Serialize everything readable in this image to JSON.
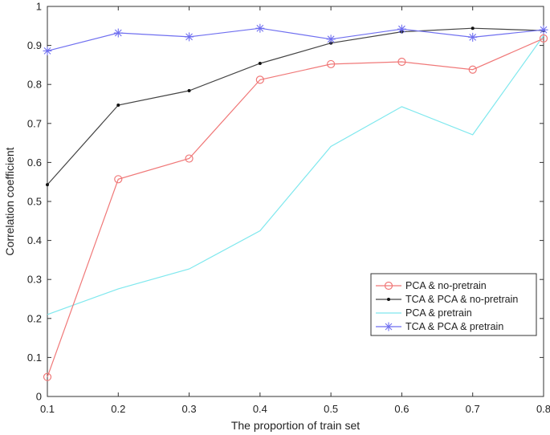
{
  "chart_data": {
    "type": "line",
    "title": "",
    "xlabel": "The proportion of train set",
    "ylabel": "Correlation coefficient",
    "xlim": [
      0.1,
      0.8
    ],
    "ylim": [
      0,
      1
    ],
    "x": [
      0.1,
      0.2,
      0.3,
      0.4,
      0.5,
      0.6,
      0.7,
      0.8
    ],
    "xticks": [
      0.1,
      0.2,
      0.3,
      0.4,
      0.5,
      0.6,
      0.7,
      0.8
    ],
    "xtick_labels": [
      "0.1",
      "0.2",
      "0.3",
      "0.4",
      "0.5",
      "0.6",
      "0.7",
      "0.8"
    ],
    "yticks": [
      0,
      0.1,
      0.2,
      0.3,
      0.4,
      0.5,
      0.6,
      0.7,
      0.8,
      0.9,
      1
    ],
    "ytick_labels": [
      "0",
      "0.1",
      "0.2",
      "0.3",
      "0.4",
      "0.5",
      "0.6",
      "0.7",
      "0.8",
      "0.9",
      "1"
    ],
    "grid": false,
    "legend_position": "lower-right",
    "series": [
      {
        "name": "PCA & no-pretrain",
        "color": "#f07878",
        "marker": "circle",
        "values": [
          0.05,
          0.557,
          0.61,
          0.812,
          0.852,
          0.858,
          0.838,
          0.918
        ]
      },
      {
        "name": "TCA & PCA & no-pretrain",
        "color": "#444444",
        "marker": "dot",
        "values": [
          0.543,
          0.747,
          0.784,
          0.854,
          0.906,
          0.935,
          0.944,
          0.938
        ]
      },
      {
        "name": "PCA & pretrain",
        "color": "#7fe8ee",
        "marker": "none",
        "values": [
          0.21,
          0.276,
          0.327,
          0.425,
          0.641,
          0.743,
          0.671,
          0.925
        ]
      },
      {
        "name": "TCA & PCA & pretrain",
        "color": "#6f6ff0",
        "marker": "star",
        "values": [
          0.886,
          0.932,
          0.922,
          0.944,
          0.916,
          0.942,
          0.921,
          0.94
        ]
      }
    ]
  }
}
